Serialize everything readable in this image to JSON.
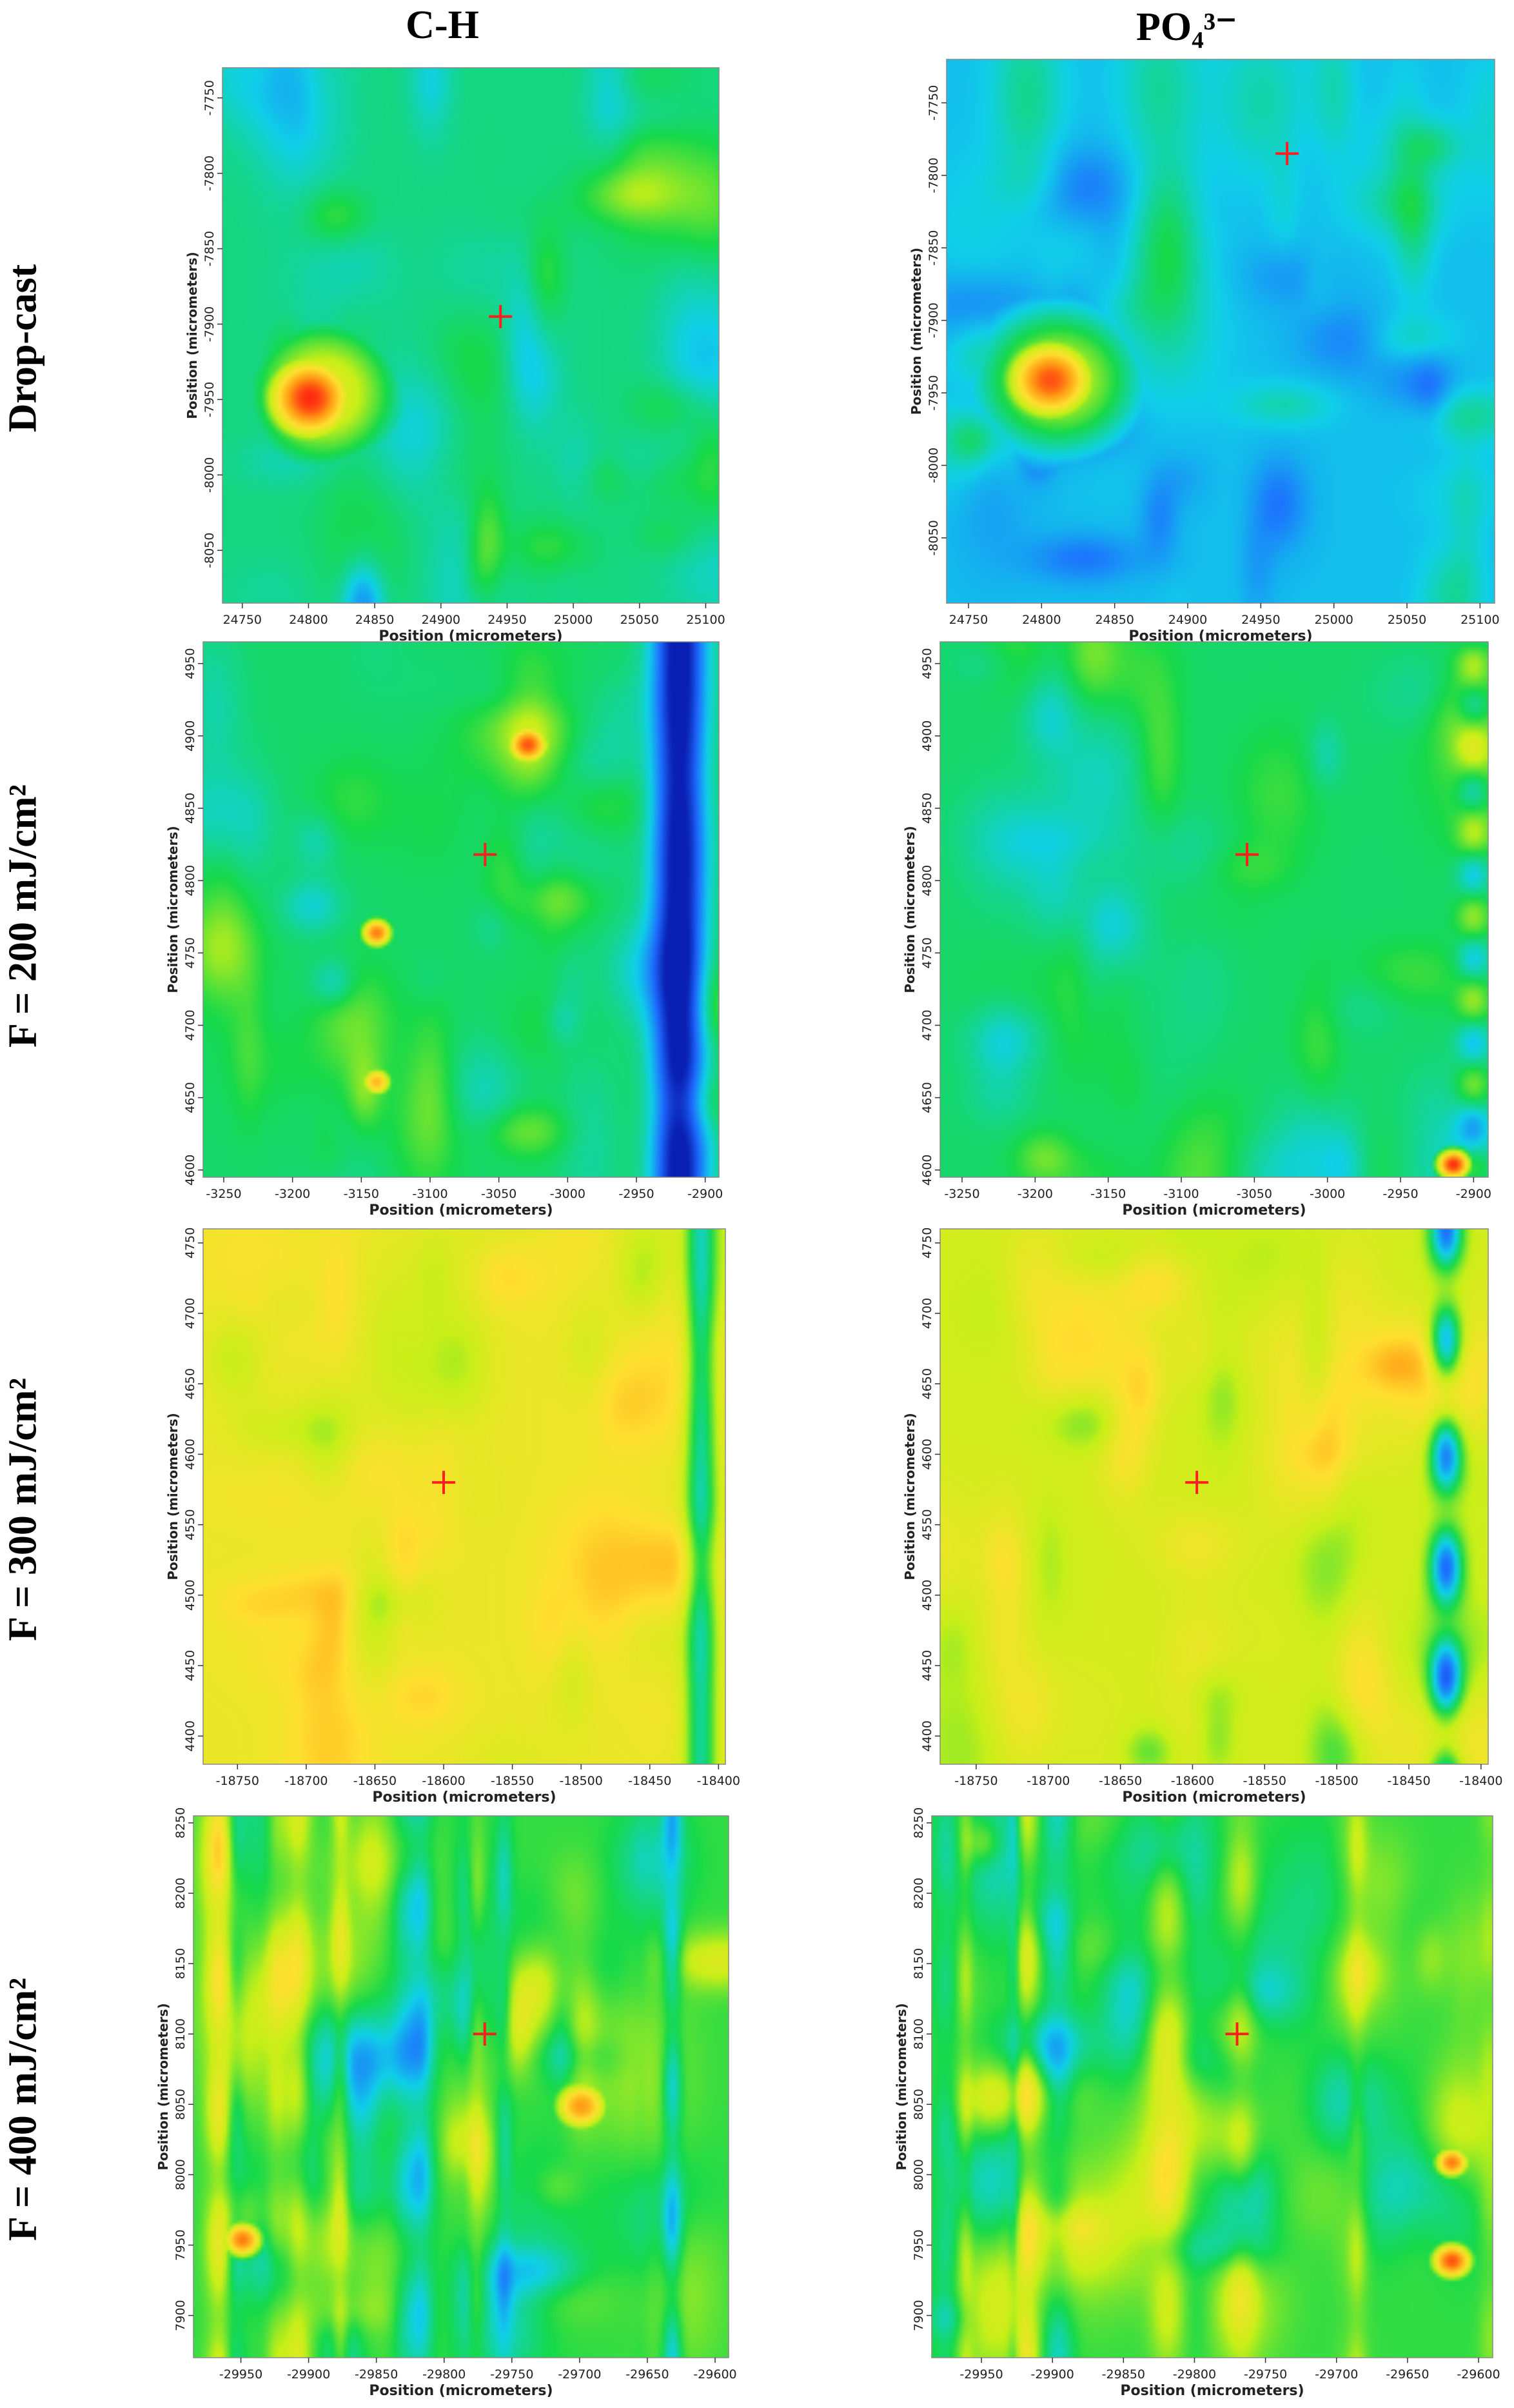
{
  "columns": [
    "C-H",
    "PO₄³⁻"
  ],
  "rows": [
    "Drop-cast",
    "F = 200 mJ/cm²",
    "F = 300 mJ/cm²",
    "F = 400 mJ/cm²"
  ],
  "colors": {
    "scale": [
      "#0a20b4",
      "#1e6cff",
      "#10d0e8",
      "#17d94a",
      "#c8ef18",
      "#ffe030",
      "#ff9a14",
      "#ff2a10"
    ],
    "marker": "#ff1e1e"
  },
  "chart_data": [
    {
      "type": "heatmap",
      "column": "C-H",
      "row": "Drop-cast",
      "xlabel": "Position (micrometers)",
      "ylabel": "Position (micrometers)",
      "xticks": [
        24750,
        24800,
        24850,
        24900,
        24950,
        25000,
        25050,
        25100
      ],
      "xlim": [
        24735,
        25110
      ],
      "yticks": [
        -7750,
        -7800,
        -7850,
        -7900,
        -7950,
        -8000,
        -8050
      ],
      "ylim": [
        -7730,
        -8085
      ],
      "marker": {
        "x": 24945,
        "y": -7895
      },
      "seed": 11,
      "level": 0.38,
      "amp": 0.22,
      "band": "none",
      "hotspots": [
        {
          "x": 24800,
          "y": -7948,
          "v": 1.0,
          "r": 38
        },
        {
          "x": 24810,
          "y": -7945,
          "v": 0.65,
          "r": 70
        }
      ]
    },
    {
      "type": "heatmap",
      "column": "PO₄³⁻",
      "row": "Drop-cast",
      "xlabel": "Position (micrometers)",
      "ylabel": "Position (micrometers)",
      "xticks": [
        24750,
        24800,
        24850,
        24900,
        24950,
        25000,
        25050,
        25100
      ],
      "xlim": [
        24735,
        25110
      ],
      "yticks": [
        -7750,
        -7800,
        -7850,
        -7900,
        -7950,
        -8000,
        -8050
      ],
      "ylim": [
        -7720,
        -8095
      ],
      "marker": {
        "x": 24968,
        "y": -7785
      },
      "seed": 23,
      "level": 0.26,
      "amp": 0.2,
      "band": "none",
      "hotspots": [
        {
          "x": 24805,
          "y": -7940,
          "v": 0.95,
          "r": 36
        },
        {
          "x": 24810,
          "y": -7940,
          "v": 0.6,
          "r": 65
        }
      ]
    },
    {
      "type": "heatmap",
      "column": "C-H",
      "row": "F = 200 mJ/cm²",
      "xlabel": "Position (micrometers)",
      "ylabel": "Position (micrometers)",
      "xticks": [
        -3250,
        -3200,
        -3150,
        -3100,
        -3050,
        -3000,
        -2950,
        -2900
      ],
      "xlim": [
        -3265,
        -2890
      ],
      "yticks": [
        4950,
        4900,
        4850,
        4800,
        4750,
        4700,
        4650,
        4600
      ],
      "ylim": [
        4965,
        4595
      ],
      "marker": {
        "x": -3060,
        "y": 4818
      },
      "seed": 37,
      "level": 0.4,
      "amp": 0.2,
      "band": "right-blue",
      "hotspots": [
        {
          "x": -3030,
          "y": 4895,
          "v": 0.95,
          "r": 18
        },
        {
          "x": -3140,
          "y": 4765,
          "v": 0.9,
          "r": 14
        },
        {
          "x": -3140,
          "y": 4662,
          "v": 0.8,
          "r": 14
        }
      ]
    },
    {
      "type": "heatmap",
      "column": "PO₄³⁻",
      "row": "F = 200 mJ/cm²",
      "xlabel": "Position (micrometers)",
      "ylabel": "Position (micrometers)",
      "xticks": [
        -3250,
        -3200,
        -3150,
        -3100,
        -3050,
        -3000,
        -2950,
        -2900
      ],
      "xlim": [
        -3265,
        -2890
      ],
      "yticks": [
        4950,
        4900,
        4850,
        4800,
        4750,
        4700,
        4650,
        4600
      ],
      "ylim": [
        4965,
        4595
      ],
      "marker": {
        "x": -3055,
        "y": 4818
      },
      "seed": 41,
      "level": 0.4,
      "amp": 0.16,
      "band": "right-stripe",
      "hotspots": [
        {
          "x": -2915,
          "y": 4605,
          "v": 1.0,
          "r": 14
        }
      ]
    },
    {
      "type": "heatmap",
      "column": "C-H",
      "row": "F = 300 mJ/cm²",
      "xlabel": "Position (micrometers)",
      "ylabel": "Position (micrometers)",
      "xticks": [
        -18750,
        -18700,
        -18650,
        -18600,
        -18550,
        -18500,
        -18450,
        -18400
      ],
      "xlim": [
        -18775,
        -18395
      ],
      "yticks": [
        4750,
        4700,
        4650,
        4600,
        4550,
        4500,
        4450,
        4400
      ],
      "ylim": [
        4760,
        4380
      ],
      "marker": {
        "x": -18600,
        "y": 4580
      },
      "seed": 53,
      "level": 0.66,
      "amp": 0.18,
      "band": "right-green",
      "hotspots": []
    },
    {
      "type": "heatmap",
      "column": "PO₄³⁻",
      "row": "F = 300 mJ/cm²",
      "xlabel": "Position (micrometers)",
      "ylabel": "Position (micrometers)",
      "xticks": [
        -18750,
        -18700,
        -18650,
        -18600,
        -18550,
        -18500,
        -18450,
        -18400
      ],
      "xlim": [
        -18775,
        -18395
      ],
      "yticks": [
        4750,
        4700,
        4650,
        4600,
        4550,
        4500,
        4450,
        4400
      ],
      "ylim": [
        4760,
        4380
      ],
      "marker": {
        "x": -18597,
        "y": 4580
      },
      "seed": 67,
      "level": 0.6,
      "amp": 0.24,
      "band": "right-blue-dots",
      "hotspots": []
    },
    {
      "type": "heatmap",
      "column": "C-H",
      "row": "F = 400 mJ/cm²",
      "xlabel": "Position (micrometers)",
      "ylabel": "Position (micrometers)",
      "xticks": [
        -29950,
        -29900,
        -29850,
        -29800,
        -29750,
        -29700,
        -29650,
        -29600
      ],
      "xlim": [
        -29985,
        -29590
      ],
      "yticks": [
        8250,
        8200,
        8150,
        8100,
        8050,
        8000,
        7950,
        7900
      ],
      "ylim": [
        8255,
        7870
      ],
      "marker": {
        "x": -29770,
        "y": 8100
      },
      "seed": 79,
      "level": 0.45,
      "amp": 0.3,
      "band": "stripes",
      "hotspots": [
        {
          "x": -29700,
          "y": 8050,
          "v": 0.85,
          "r": 25
        },
        {
          "x": -29950,
          "y": 7955,
          "v": 0.9,
          "r": 18
        }
      ]
    },
    {
      "type": "heatmap",
      "column": "PO₄³⁻",
      "row": "F = 400 mJ/cm²",
      "xlabel": "Position (micrometers)",
      "ylabel": "Position (micrometers)",
      "xticks": [
        -29950,
        -29900,
        -29850,
        -29800,
        -29750,
        -29700,
        -29650,
        -29600
      ],
      "xlim": [
        -29985,
        -29590
      ],
      "yticks": [
        8250,
        8200,
        8150,
        8100,
        8050,
        8000,
        7950,
        7900
      ],
      "ylim": [
        8255,
        7870
      ],
      "marker": {
        "x": -29770,
        "y": 8100
      },
      "seed": 83,
      "level": 0.45,
      "amp": 0.3,
      "band": "stripes",
      "hotspots": [
        {
          "x": -29620,
          "y": 7940,
          "v": 0.95,
          "r": 18
        },
        {
          "x": -29620,
          "y": 8010,
          "v": 0.9,
          "r": 15
        }
      ]
    }
  ]
}
